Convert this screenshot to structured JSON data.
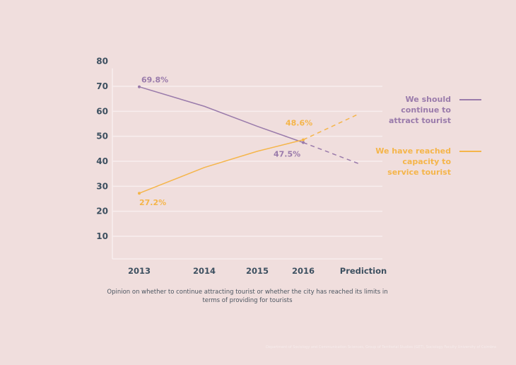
{
  "chart_data": {
    "type": "line",
    "title": "",
    "xlabel": "",
    "ylabel": "",
    "categories": [
      "2013",
      "2014",
      "2015",
      "2016",
      "Prediction"
    ],
    "yticks": [
      10,
      20,
      30,
      40,
      50,
      60,
      70,
      80
    ],
    "ylim": [
      0,
      80
    ],
    "grid": true,
    "legend_position": "right",
    "series": [
      {
        "name": "We should continue to attract tourist",
        "name_lines": [
          "We should",
          "continue to",
          "attract tourist"
        ],
        "color": "#9a7bab",
        "values": [
          69.8,
          62,
          54,
          47.5,
          39
        ],
        "dashed_from_index": 3,
        "data_labels": [
          {
            "index": 0,
            "text": "69.8%"
          },
          {
            "index": 3,
            "text": "47.5%"
          }
        ]
      },
      {
        "name": "We have reached capacity to service tourist",
        "name_lines": [
          "We have reached",
          "capacity to",
          "service tourist"
        ],
        "color": "#f5b54a",
        "values": [
          27.2,
          37.5,
          44,
          48.6,
          59
        ],
        "dashed_from_index": 3,
        "data_labels": [
          {
            "index": 0,
            "text": "27.2%"
          },
          {
            "index": 3,
            "text": "48.6%"
          }
        ]
      }
    ]
  },
  "caption": {
    "line1": "Opinion on whether to continue attracting tourist  or whether the city has reached its limits in",
    "line2": "terms of providing for tourists"
  },
  "footer": "Department of Sociology and Communication Sciences, Group of Territorial Studies (GET), Sociology Faculty University of Coimbra"
}
